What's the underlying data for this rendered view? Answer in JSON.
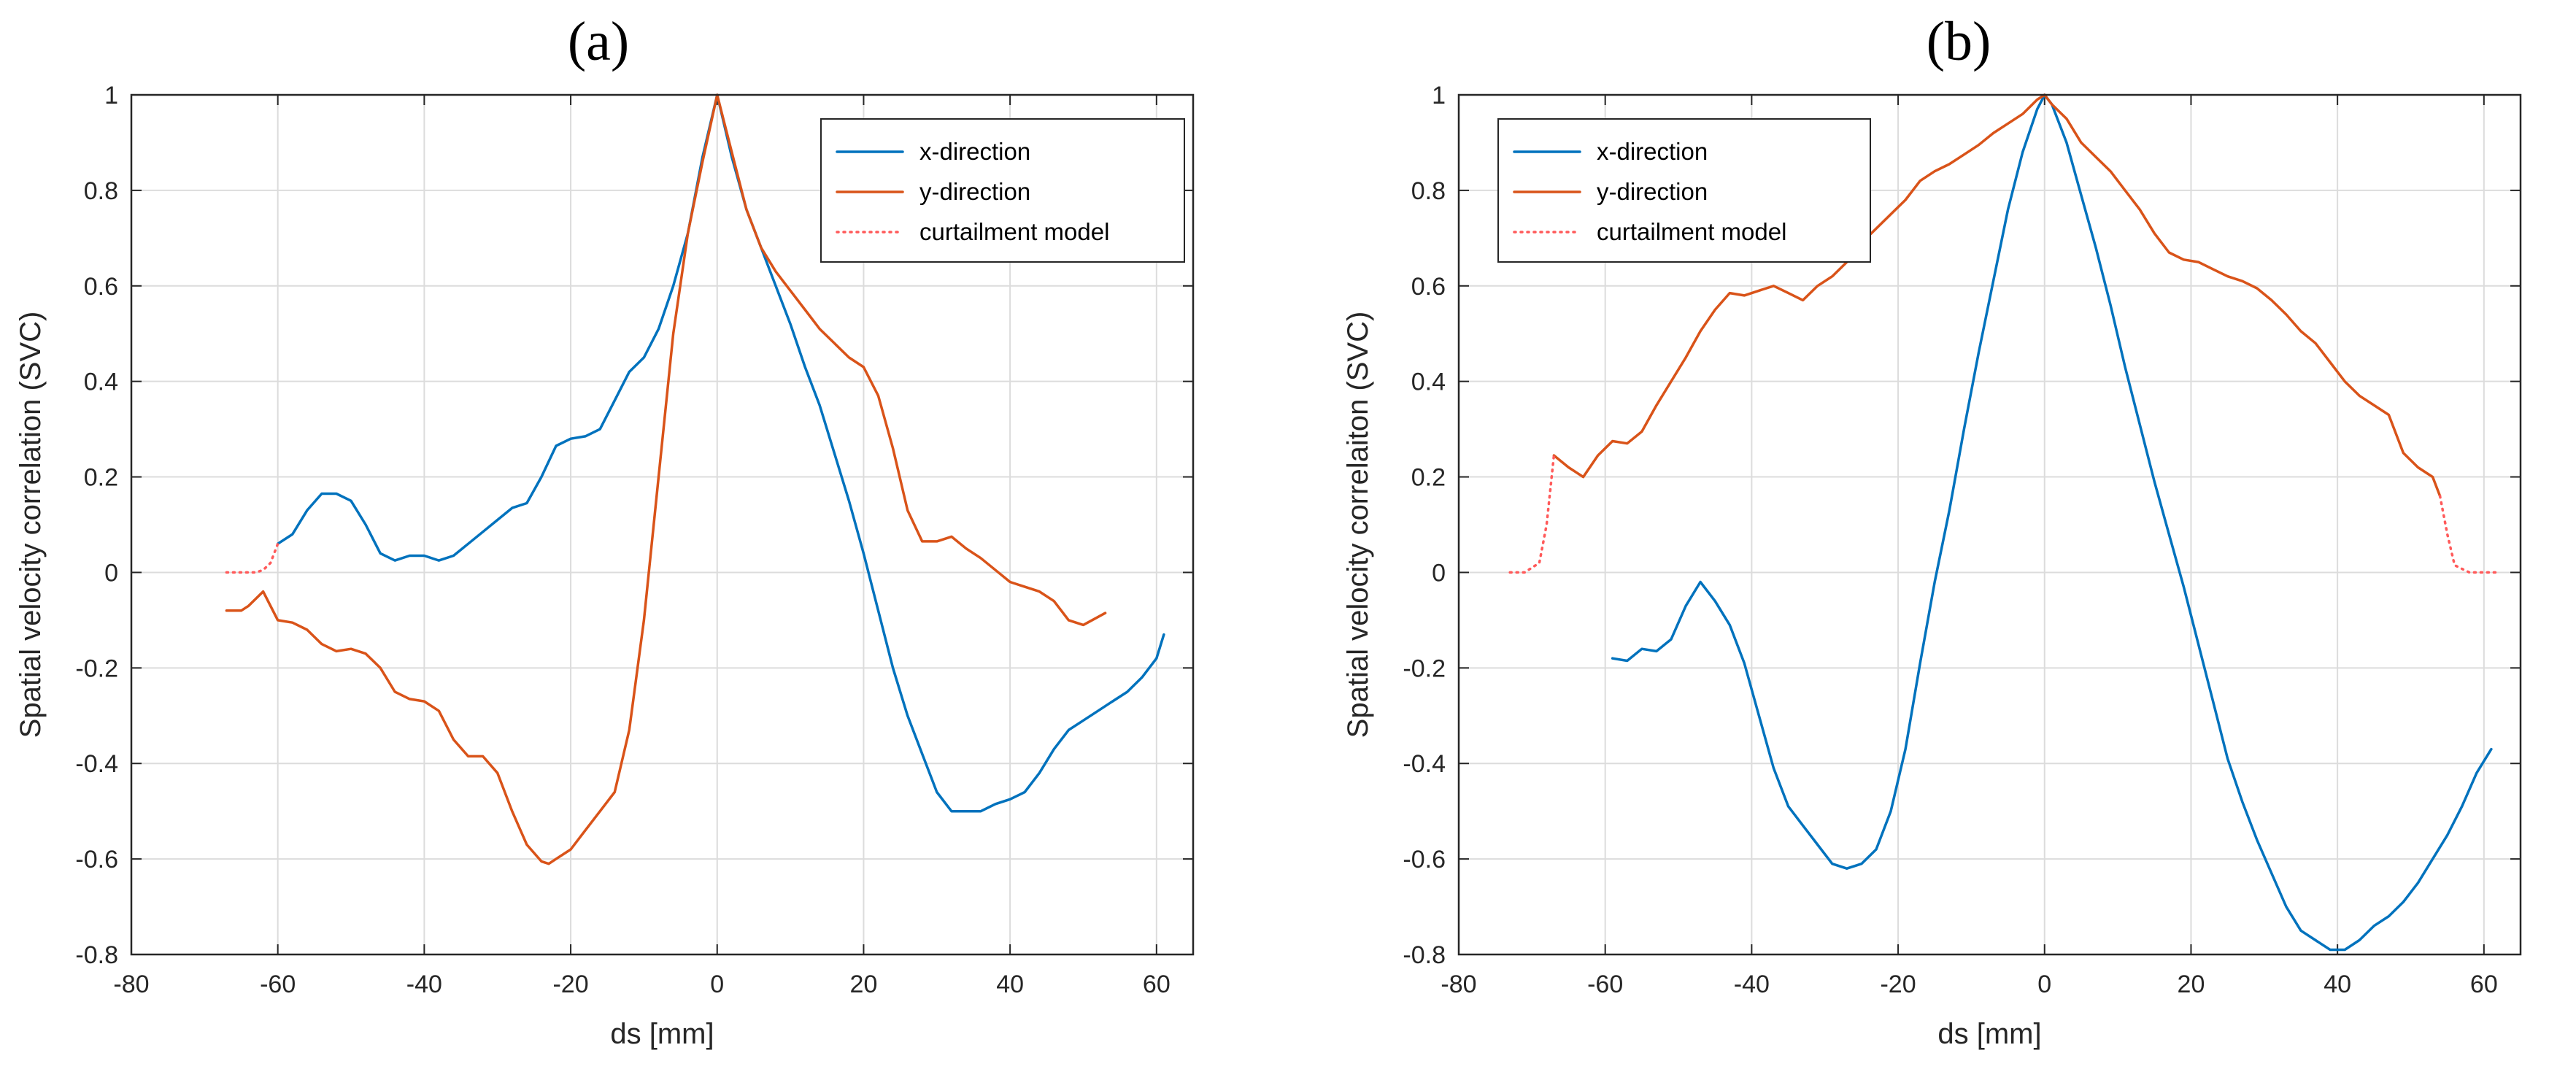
{
  "colors": {
    "x": "#0072BD",
    "y": "#D95319",
    "curtail": "#FF5A5A"
  },
  "chart_data": [
    {
      "type": "line",
      "panel_label": "(a)",
      "title": "",
      "xlabel": "ds [mm]",
      "ylabel": "Spatial velocity correlation (SVC)",
      "xlim": [
        -80,
        65
      ],
      "ylim": [
        -0.8,
        1
      ],
      "xticks": [
        -80,
        -60,
        -40,
        -20,
        0,
        20,
        40,
        60
      ],
      "yticks": [
        -0.8,
        -0.6,
        -0.4,
        -0.2,
        0,
        0.2,
        0.4,
        0.6,
        0.8,
        1
      ],
      "grid": true,
      "legend": {
        "placement": "top-right",
        "entries": [
          "x-direction",
          "y-direction",
          "curtailment model"
        ]
      },
      "series": [
        {
          "name": "x-direction",
          "style": "solid",
          "color": "#0072BD",
          "x": [
            -60,
            -58,
            -56,
            -54,
            -52,
            -50,
            -48,
            -46,
            -44,
            -42,
            -40,
            -38,
            -36,
            -34,
            -32,
            -30,
            -28,
            -26,
            -24,
            -22,
            -20,
            -18,
            -16,
            -14,
            -12,
            -10,
            -8,
            -6,
            -4,
            -2,
            0,
            2,
            4,
            6,
            8,
            10,
            12,
            14,
            16,
            18,
            20,
            22,
            24,
            26,
            28,
            30,
            32,
            34,
            36,
            38,
            40,
            42,
            44,
            46,
            48,
            50,
            52,
            54,
            56,
            58,
            60,
            61
          ],
          "y": [
            0.06,
            0.08,
            0.13,
            0.165,
            0.165,
            0.15,
            0.1,
            0.04,
            0.025,
            0.035,
            0.035,
            0.025,
            0.035,
            0.06,
            0.085,
            0.11,
            0.135,
            0.145,
            0.2,
            0.265,
            0.28,
            0.285,
            0.3,
            0.36,
            0.42,
            0.45,
            0.51,
            0.6,
            0.71,
            0.87,
            1.0,
            0.87,
            0.76,
            0.68,
            0.6,
            0.52,
            0.43,
            0.35,
            0.25,
            0.15,
            0.04,
            -0.08,
            -0.2,
            -0.3,
            -0.38,
            -0.46,
            -0.5,
            -0.5,
            -0.5,
            -0.485,
            -0.475,
            -0.46,
            -0.42,
            -0.37,
            -0.33,
            -0.31,
            -0.29,
            -0.27,
            -0.25,
            -0.22,
            -0.18,
            -0.13
          ]
        },
        {
          "name": "y-direction",
          "style": "solid",
          "color": "#D95319",
          "x": [
            -67,
            -65,
            -64,
            -62,
            -60,
            -58,
            -56,
            -54,
            -52,
            -50,
            -48,
            -46,
            -44,
            -42,
            -40,
            -38,
            -36,
            -34,
            -32,
            -30,
            -28,
            -26,
            -24,
            -23,
            -22,
            -20,
            -18,
            -16,
            -14,
            -12,
            -10,
            -8,
            -6,
            -4,
            -2,
            0,
            2,
            4,
            6,
            8,
            10,
            12,
            14,
            16,
            18,
            20,
            22,
            24,
            26,
            28,
            30,
            32,
            34,
            36,
            38,
            40,
            42,
            44,
            46,
            48,
            50,
            53
          ],
          "y": [
            -0.08,
            -0.08,
            -0.07,
            -0.04,
            -0.1,
            -0.105,
            -0.12,
            -0.15,
            -0.165,
            -0.16,
            -0.17,
            -0.2,
            -0.25,
            -0.265,
            -0.27,
            -0.29,
            -0.35,
            -0.385,
            -0.385,
            -0.42,
            -0.5,
            -0.57,
            -0.605,
            -0.61,
            -0.6,
            -0.58,
            -0.54,
            -0.5,
            -0.46,
            -0.33,
            -0.1,
            0.2,
            0.5,
            0.71,
            0.86,
            1.0,
            0.88,
            0.76,
            0.68,
            0.63,
            0.59,
            0.55,
            0.51,
            0.48,
            0.45,
            0.43,
            0.37,
            0.26,
            0.13,
            0.065,
            0.065,
            0.075,
            0.05,
            0.03,
            0.005,
            -0.02,
            -0.03,
            -0.04,
            -0.06,
            -0.1,
            -0.11,
            -0.085
          ]
        },
        {
          "name": "curtailment model",
          "style": "dotted",
          "color": "#FF5A5A",
          "x": [
            -67,
            -65,
            -63,
            -62,
            -61,
            -60
          ],
          "y": [
            0,
            0,
            0,
            0.005,
            0.02,
            0.06
          ]
        }
      ]
    },
    {
      "type": "line",
      "panel_label": "(b)",
      "title": "",
      "xlabel": "ds [mm]",
      "ylabel": "Spatial velocity correlaiton (SVC)",
      "xlim": [
        -80,
        65
      ],
      "ylim": [
        -0.8,
        1
      ],
      "xticks": [
        -80,
        -60,
        -40,
        -20,
        0,
        20,
        40,
        60
      ],
      "yticks": [
        -0.8,
        -0.6,
        -0.4,
        -0.2,
        0,
        0.2,
        0.4,
        0.6,
        0.8,
        1
      ],
      "grid": true,
      "legend": {
        "placement": "top-left",
        "entries": [
          "x-direction",
          "y-direction",
          "curtailment model"
        ]
      },
      "series": [
        {
          "name": "x-direction",
          "style": "solid",
          "color": "#0072BD",
          "x": [
            -59,
            -57,
            -55,
            -53,
            -51,
            -49,
            -47,
            -45,
            -43,
            -41,
            -39,
            -37,
            -35,
            -33,
            -31,
            -29,
            -27,
            -25,
            -23,
            -21,
            -19,
            -17,
            -15,
            -13,
            -11,
            -9,
            -7,
            -5,
            -3,
            -1,
            0,
            1,
            3,
            5,
            7,
            9,
            11,
            13,
            15,
            17,
            19,
            21,
            23,
            25,
            27,
            29,
            31,
            33,
            35,
            37,
            39,
            41,
            43,
            45,
            47,
            49,
            51,
            53,
            55,
            57,
            59,
            61
          ],
          "y": [
            -0.18,
            -0.185,
            -0.16,
            -0.165,
            -0.14,
            -0.07,
            -0.02,
            -0.06,
            -0.11,
            -0.19,
            -0.3,
            -0.41,
            -0.49,
            -0.53,
            -0.57,
            -0.61,
            -0.62,
            -0.61,
            -0.58,
            -0.5,
            -0.37,
            -0.19,
            -0.02,
            0.13,
            0.3,
            0.46,
            0.61,
            0.76,
            0.88,
            0.97,
            1.0,
            0.98,
            0.9,
            0.79,
            0.68,
            0.56,
            0.43,
            0.31,
            0.19,
            0.08,
            -0.03,
            -0.15,
            -0.27,
            -0.39,
            -0.48,
            -0.56,
            -0.63,
            -0.7,
            -0.75,
            -0.77,
            -0.79,
            -0.79,
            -0.77,
            -0.74,
            -0.72,
            -0.69,
            -0.65,
            -0.6,
            -0.55,
            -0.49,
            -0.42,
            -0.37
          ]
        },
        {
          "name": "y-direction",
          "style": "solid",
          "color": "#D95319",
          "x": [
            -67,
            -65,
            -63,
            -61,
            -59,
            -57,
            -55,
            -53,
            -51,
            -49,
            -47,
            -45,
            -43,
            -41,
            -39,
            -37,
            -35,
            -33,
            -31,
            -29,
            -27,
            -25,
            -23,
            -21,
            -19,
            -17,
            -15,
            -13,
            -11,
            -9,
            -7,
            -5,
            -3,
            -1,
            0,
            1,
            3,
            5,
            7,
            9,
            11,
            13,
            15,
            17,
            19,
            21,
            23,
            25,
            27,
            29,
            31,
            33,
            35,
            37,
            39,
            41,
            43,
            45,
            47,
            49,
            51,
            53,
            54
          ],
          "y": [
            0.245,
            0.22,
            0.2,
            0.245,
            0.275,
            0.27,
            0.295,
            0.35,
            0.4,
            0.45,
            0.505,
            0.55,
            0.585,
            0.58,
            0.59,
            0.6,
            0.585,
            0.57,
            0.6,
            0.62,
            0.65,
            0.69,
            0.72,
            0.75,
            0.78,
            0.82,
            0.84,
            0.855,
            0.875,
            0.895,
            0.92,
            0.94,
            0.96,
            0.99,
            1.0,
            0.98,
            0.95,
            0.9,
            0.87,
            0.84,
            0.8,
            0.76,
            0.71,
            0.67,
            0.655,
            0.65,
            0.635,
            0.62,
            0.61,
            0.595,
            0.57,
            0.54,
            0.505,
            0.48,
            0.44,
            0.4,
            0.37,
            0.35,
            0.33,
            0.25,
            0.22,
            0.2,
            0.16
          ]
        },
        {
          "name": "curtailment model",
          "style": "dotted",
          "color": "#FF5A5A",
          "x": [
            -73,
            -71,
            -69,
            -68,
            -67
          ],
          "y": [
            0,
            0,
            0.02,
            0.1,
            0.245
          ]
        },
        {
          "name": "curtailment model",
          "style": "dotted",
          "color": "#FF5A5A",
          "x": [
            54,
            55,
            56,
            58,
            60,
            62
          ],
          "y": [
            0.16,
            0.08,
            0.015,
            0,
            0,
            0
          ]
        }
      ]
    }
  ]
}
